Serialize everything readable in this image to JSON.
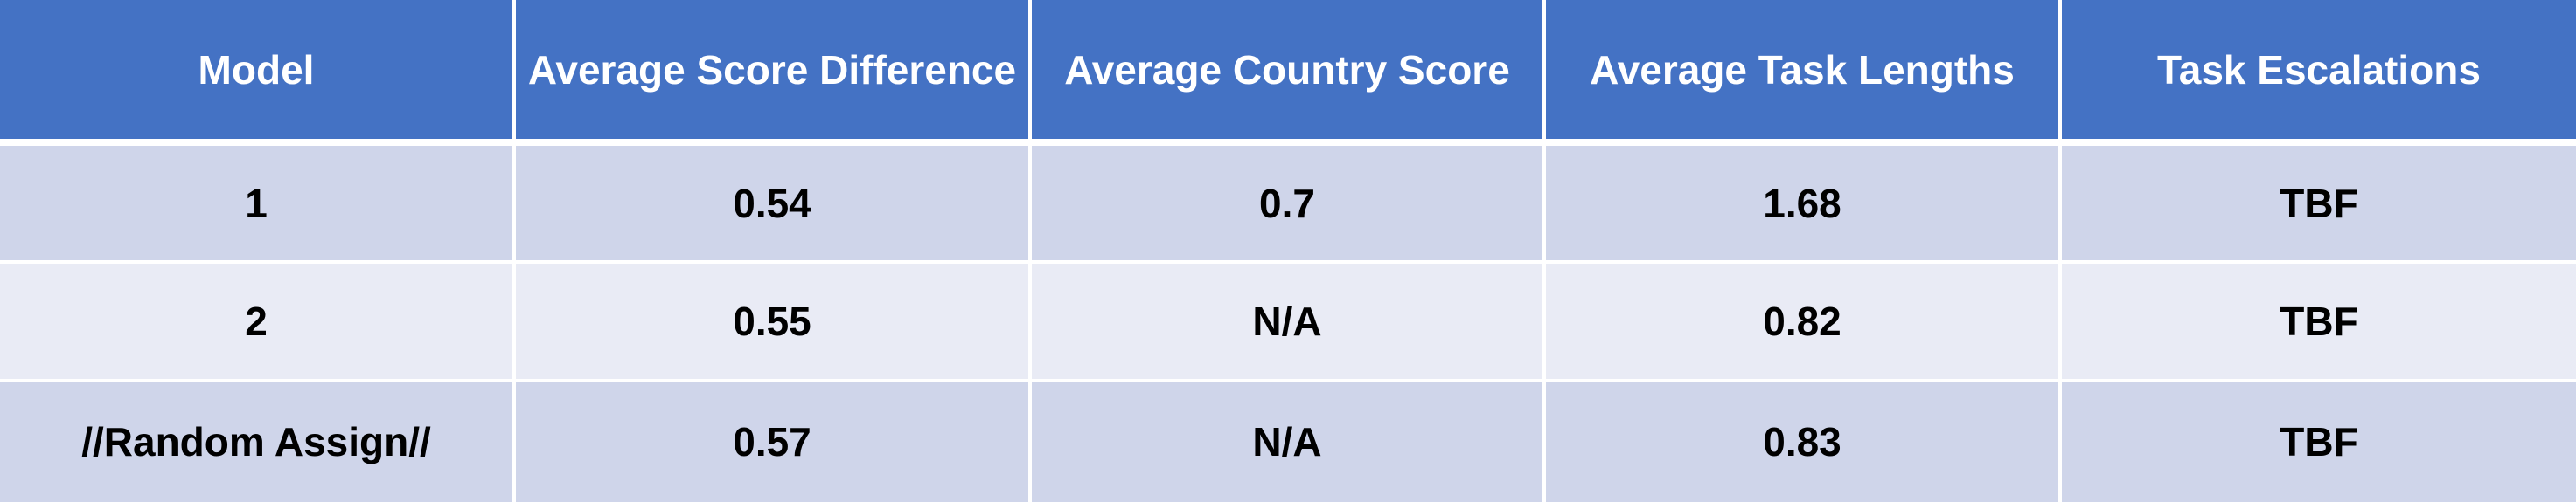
{
  "table": {
    "headers": [
      "Model",
      "Average Score Difference",
      "Average Country Score",
      "Average Task Lengths",
      "Task Escalations"
    ],
    "rows": [
      [
        "1",
        "0.54",
        "0.7",
        "1.68",
        "TBF"
      ],
      [
        "2",
        "0.55",
        "N/A",
        "0.82",
        "TBF"
      ],
      [
        "//Random Assign//",
        "0.57",
        "N/A",
        "0.83",
        "TBF"
      ]
    ]
  },
  "colors": {
    "header_bg": "#4472c4",
    "row_odd_bg": "#cfd5ea",
    "row_even_bg": "#e9ebf5",
    "header_text": "#ffffff",
    "body_text": "#000000"
  }
}
